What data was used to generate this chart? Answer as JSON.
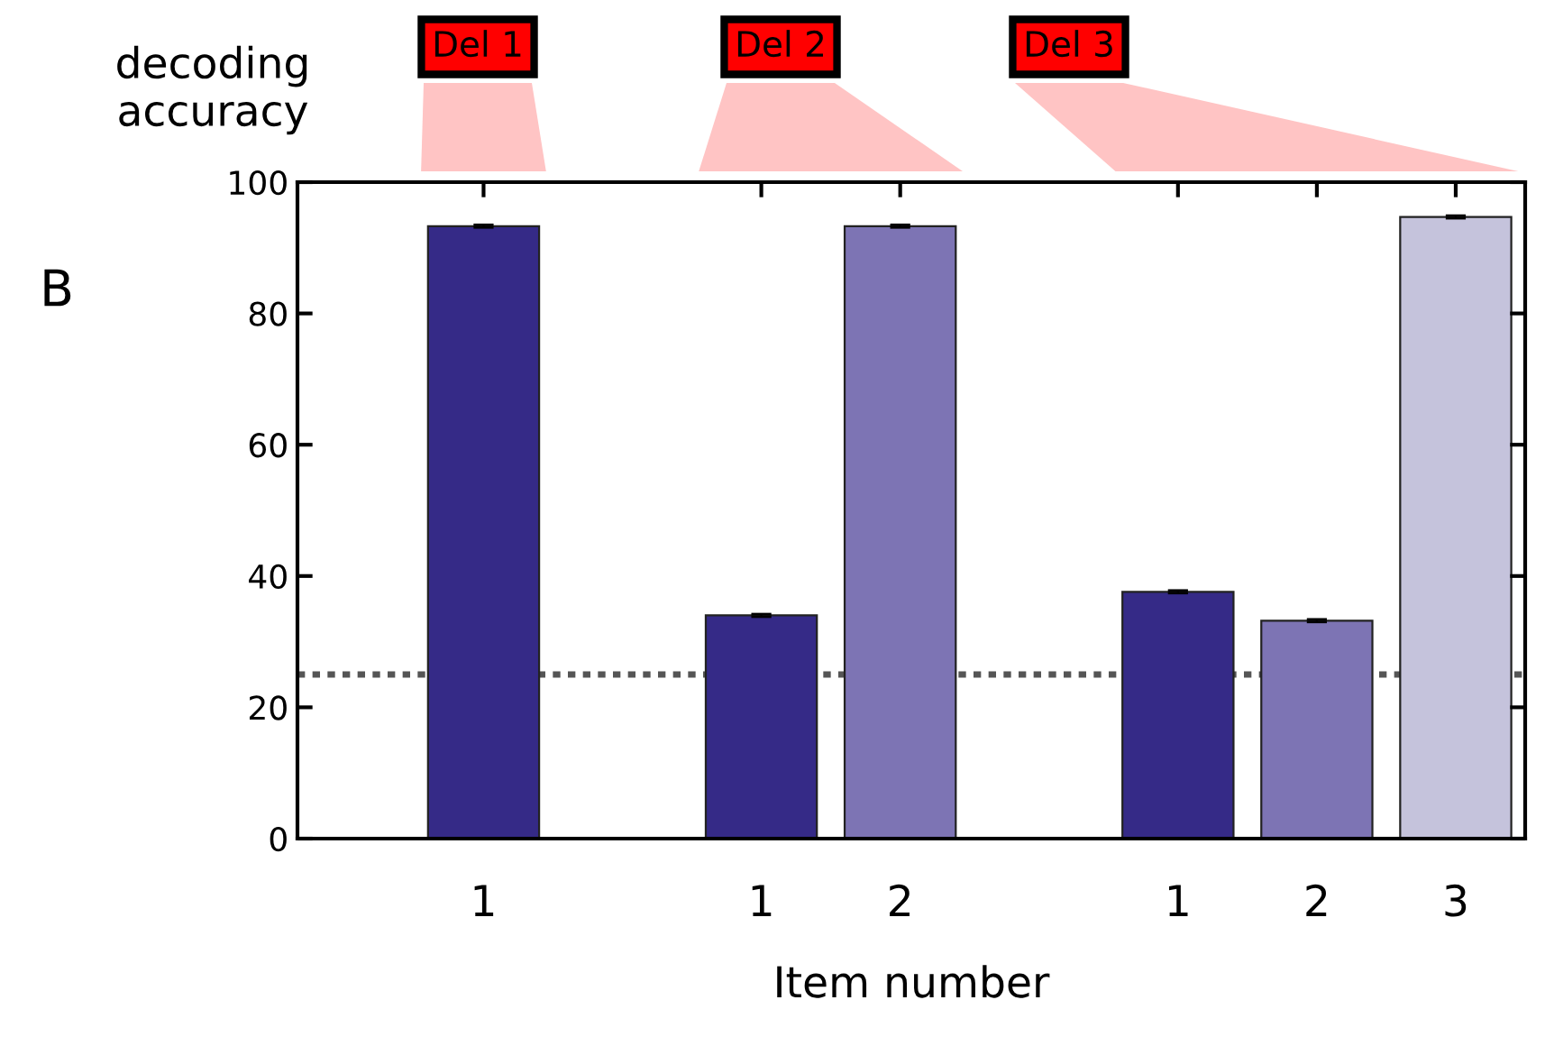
{
  "chart_data": {
    "type": "bar",
    "xlabel": "Item number",
    "ylabel": "decoding\naccuracy",
    "categories": [
      "1",
      null,
      "1",
      "2",
      null,
      "1",
      "2",
      "3"
    ],
    "values": [
      93.3,
      null,
      34.0,
      93.3,
      null,
      37.6,
      33.2,
      94.7
    ],
    "errors": [
      0.2,
      null,
      0.2,
      0.2,
      null,
      0.2,
      0.2,
      0.2
    ],
    "colors": [
      "#352a87",
      "#ffffff",
      "#352a87",
      "#7d74b4",
      "#ffffff",
      "#352a87",
      "#7d74b4",
      "#c5c3dc"
    ],
    "ylim": [
      0,
      100
    ],
    "yticks": [
      0,
      20,
      40,
      60,
      80,
      100
    ],
    "grid": false,
    "ref_lines": [
      {
        "axis": "y",
        "value": 25,
        "color": "#555555",
        "line_style": "dotted"
      }
    ],
    "annotations": [
      "Del 1",
      "Del 2",
      "Del 3",
      "B"
    ]
  }
}
